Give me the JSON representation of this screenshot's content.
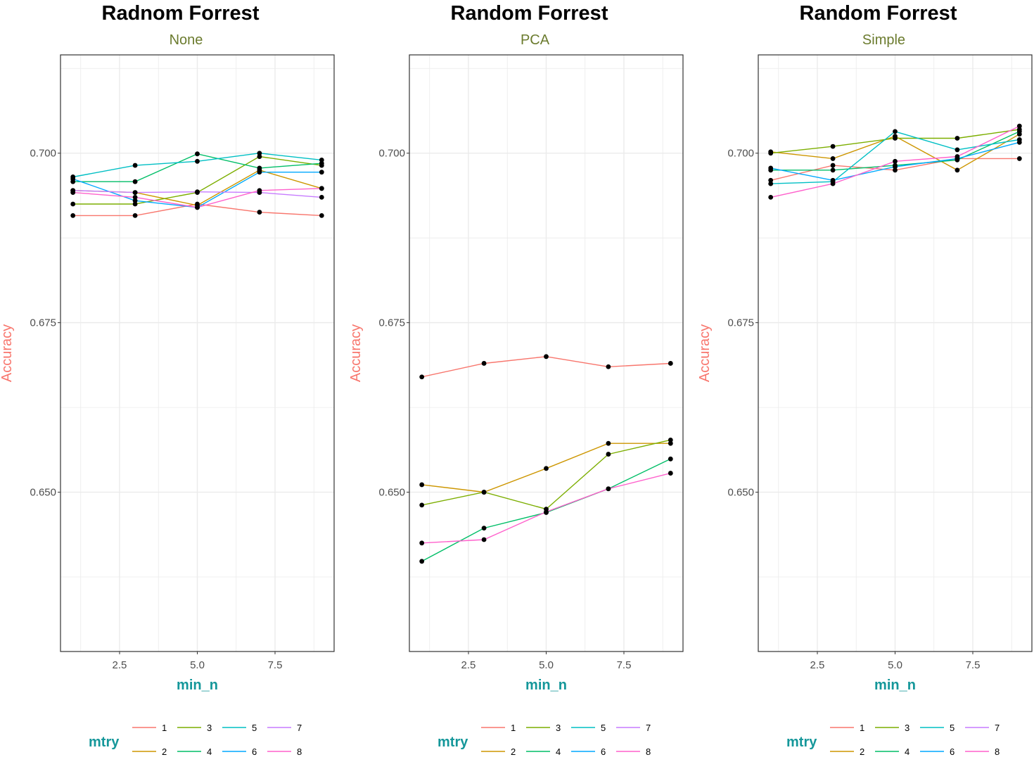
{
  "chart_data": [
    {
      "type": "line",
      "title": "Radnom Forrest",
      "subtitle": "None",
      "xlabel": "min_n",
      "ylabel": "Accuracy",
      "xlim": [
        0.6,
        9.4
      ],
      "ylim": [
        0.6265,
        0.7145
      ],
      "xticks": [
        2.5,
        5.0,
        7.5
      ],
      "xtick_labels": [
        "2.5",
        "5.0",
        "7.5"
      ],
      "yticks": [
        0.65,
        0.675,
        0.7
      ],
      "ytick_labels": [
        "0.650",
        "0.675",
        "0.700"
      ],
      "x": [
        1,
        3,
        5,
        7,
        9
      ],
      "grid": true,
      "legend": {
        "title": "mtry",
        "position": "bottom",
        "labels": [
          "1",
          "2",
          "3",
          "4",
          "5",
          "6",
          "7",
          "8"
        ]
      },
      "series": [
        {
          "name": "1",
          "color": "#F8766D",
          "values": [
            0.6908,
            0.6908,
            0.6925,
            0.6913,
            0.6908
          ]
        },
        {
          "name": "2",
          "color": "#CD9600",
          "values": [
            0.6945,
            0.6942,
            0.6923,
            0.6975,
            0.6948
          ]
        },
        {
          "name": "3",
          "color": "#7CAE00",
          "values": [
            0.6925,
            0.6925,
            0.6942,
            0.6995,
            0.6982
          ]
        },
        {
          "name": "4",
          "color": "#00BE67",
          "values": [
            0.6958,
            0.6958,
            0.6999,
            0.6978,
            0.6985
          ]
        },
        {
          "name": "5",
          "color": "#00BFC4",
          "values": [
            0.6965,
            0.6982,
            0.6988,
            0.7,
            0.699
          ]
        },
        {
          "name": "6",
          "color": "#00A9FF",
          "values": [
            0.6962,
            0.693,
            0.692,
            0.6972,
            0.6972
          ]
        },
        {
          "name": "7",
          "color": "#C77CFF",
          "values": [
            0.6945,
            0.6942,
            0.6943,
            0.6942,
            0.6935
          ]
        },
        {
          "name": "8",
          "color": "#FF61CC",
          "values": [
            0.6942,
            0.6935,
            0.692,
            0.6945,
            0.6948
          ]
        }
      ]
    },
    {
      "type": "line",
      "title": "Random Forrest",
      "subtitle": "PCA",
      "xlabel": "min_n",
      "ylabel": "Accuracy",
      "xlim": [
        0.6,
        9.4
      ],
      "ylim": [
        0.6265,
        0.7145
      ],
      "xticks": [
        2.5,
        5.0,
        7.5
      ],
      "xtick_labels": [
        "2.5",
        "5.0",
        "7.5"
      ],
      "yticks": [
        0.65,
        0.675,
        0.7
      ],
      "ytick_labels": [
        "0.650",
        "0.675",
        "0.700"
      ],
      "x": [
        1,
        3,
        5,
        7,
        9
      ],
      "grid": true,
      "legend": {
        "title": "mtry",
        "position": "bottom",
        "labels": [
          "1",
          "2",
          "3",
          "4",
          "5",
          "6",
          "7",
          "8"
        ]
      },
      "series": [
        {
          "name": "1",
          "color": "#F8766D",
          "values": [
            0.667,
            0.669,
            0.67,
            0.6685,
            0.669
          ]
        },
        {
          "name": "2",
          "color": "#CD9600",
          "values": [
            0.6511,
            0.65,
            0.6535,
            0.6572,
            0.6572
          ]
        },
        {
          "name": "3",
          "color": "#7CAE00",
          "values": [
            0.6481,
            0.65,
            0.6475,
            0.6556,
            0.6577
          ]
        },
        {
          "name": "4",
          "color": "#00BE67",
          "values": [
            0.6398,
            0.6447,
            0.647,
            0.6505,
            0.6549
          ]
        },
        {
          "name": "8",
          "color": "#FF61CC",
          "values": [
            0.6425,
            0.643,
            0.6471,
            0.6505,
            0.6528
          ]
        }
      ]
    },
    {
      "type": "line",
      "title": "Random Forrest",
      "subtitle": "Simple",
      "xlabel": "min_n",
      "ylabel": "Accuracy",
      "xlim": [
        0.6,
        9.4
      ],
      "ylim": [
        0.6265,
        0.7145
      ],
      "xticks": [
        2.5,
        5.0,
        7.5
      ],
      "xtick_labels": [
        "2.5",
        "5.0",
        "7.5"
      ],
      "yticks": [
        0.65,
        0.675,
        0.7
      ],
      "ytick_labels": [
        "0.650",
        "0.675",
        "0.700"
      ],
      "x": [
        1,
        3,
        5,
        7,
        9
      ],
      "grid": true,
      "legend": {
        "title": "mtry",
        "position": "bottom",
        "labels": [
          "1",
          "2",
          "3",
          "4",
          "5",
          "6",
          "7",
          "8"
        ]
      },
      "series": [
        {
          "name": "1",
          "color": "#F8766D",
          "values": [
            0.696,
            0.6982,
            0.6975,
            0.6992,
            0.6992
          ]
        },
        {
          "name": "2",
          "color": "#CD9600",
          "values": [
            0.7002,
            0.6992,
            0.7025,
            0.6975,
            0.7028
          ]
        },
        {
          "name": "3",
          "color": "#7CAE00",
          "values": [
            0.7,
            0.701,
            0.7022,
            0.7022,
            0.7035
          ]
        },
        {
          "name": "4",
          "color": "#00BE67",
          "values": [
            0.6975,
            0.6975,
            0.6982,
            0.699,
            0.7032
          ]
        },
        {
          "name": "5",
          "color": "#00BFC4",
          "values": [
            0.6955,
            0.6958,
            0.7032,
            0.7005,
            0.702
          ]
        },
        {
          "name": "6",
          "color": "#00A9FF",
          "values": [
            0.6978,
            0.696,
            0.698,
            0.6992,
            0.7016
          ]
        },
        {
          "name": "8",
          "color": "#FF61CC",
          "values": [
            0.6935,
            0.6955,
            0.6988,
            0.6995,
            0.704
          ]
        }
      ]
    }
  ]
}
